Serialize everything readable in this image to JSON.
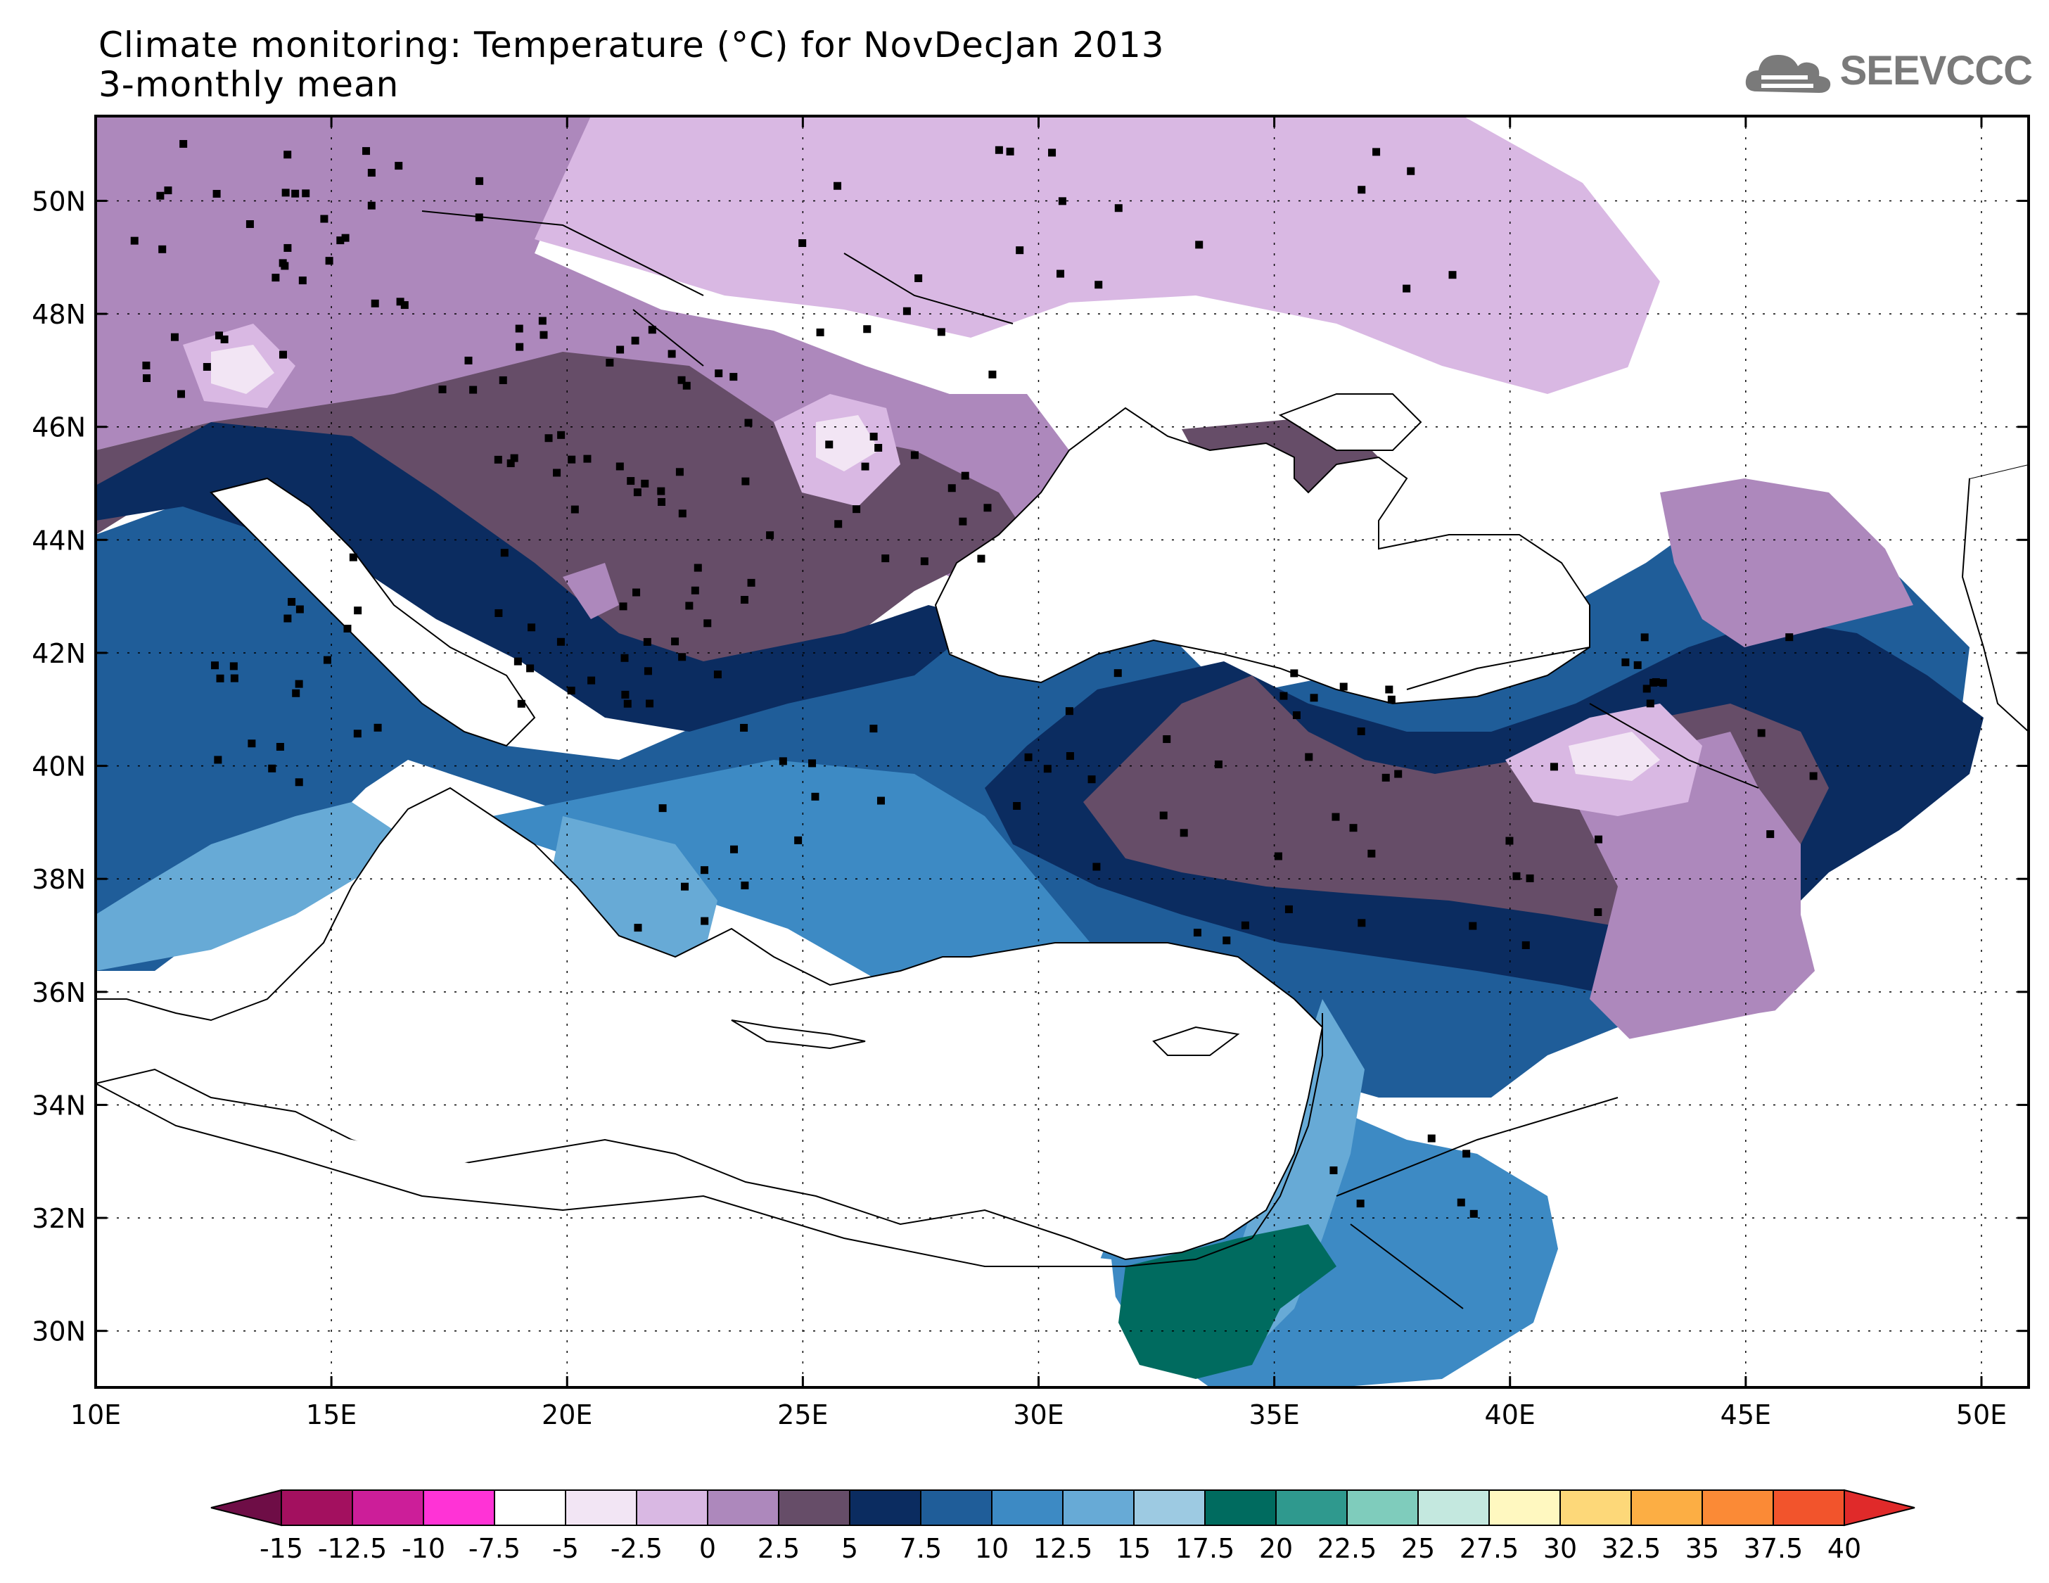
{
  "title": {
    "line1": "Climate monitoring: Temperature (°C) for NovDecJan 2013",
    "line2": "3-monthly mean"
  },
  "logo": {
    "text": "SEEVCCC",
    "icon": "cloud-icon"
  },
  "map": {
    "lat_labels": [
      "50N",
      "48N",
      "46N",
      "44N",
      "42N",
      "40N",
      "38N",
      "36N",
      "34N",
      "32N",
      "30N"
    ],
    "lon_labels": [
      "10E",
      "15E",
      "20E",
      "25E",
      "30E",
      "35E",
      "40E",
      "45E",
      "50E"
    ]
  },
  "colorbar": {
    "labels": [
      "-15",
      "-12.5",
      "-10",
      "-7.5",
      "-5",
      "-2.5",
      "0",
      "2.5",
      "5",
      "7.5",
      "10",
      "12.5",
      "15",
      "17.5",
      "20",
      "22.5",
      "25",
      "27.5",
      "30",
      "32.5",
      "35",
      "37.5",
      "40"
    ],
    "low_color": "#6e0d46",
    "high_color": "#e02a2a",
    "colors": [
      "#a3105f",
      "#cc1e99",
      "#ff33d6",
      "#ffffff",
      "#f2e5f4",
      "#d9b8e3",
      "#ad88bc",
      "#664d68",
      "#0b2c60",
      "#1f5d99",
      "#3d8ac4",
      "#67aad6",
      "#9dcae2",
      "#006b5f",
      "#2f998e",
      "#7fccbc",
      "#c4e8df",
      "#fff8c0",
      "#fdd879",
      "#fcae44",
      "#fb8a36",
      "#f2542c"
    ]
  }
}
